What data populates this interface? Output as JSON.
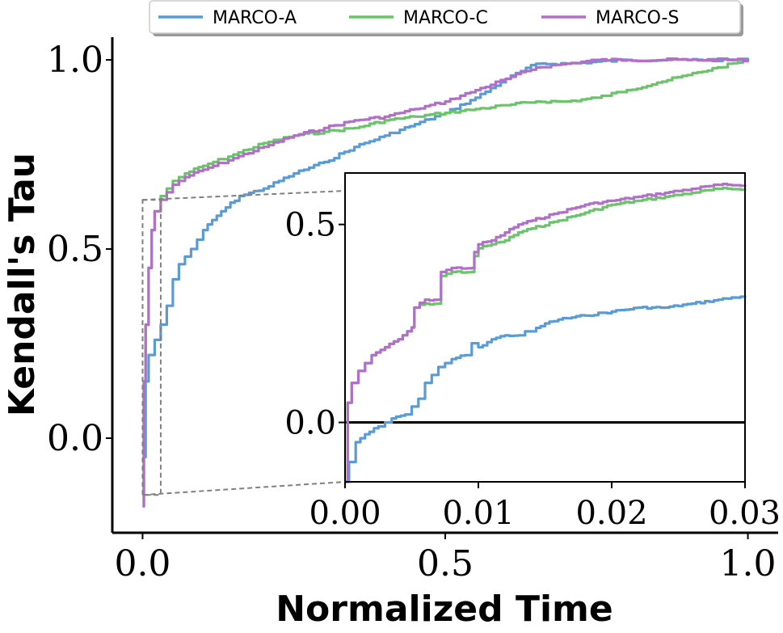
{
  "chart_data": [
    {
      "type": "line",
      "role": "main",
      "xlabel": "Normalized Time",
      "ylabel": "Kendall's Tau",
      "xlim": [
        -0.05,
        1.05
      ],
      "ylim": [
        -0.25,
        1.06
      ],
      "xticks": [
        0.0,
        0.5,
        1.0
      ],
      "xtick_labels": [
        "0.0",
        "0.5",
        "1.0"
      ],
      "yticks": [
        0.0,
        0.5,
        1.0
      ],
      "ytick_labels": [
        "0.0",
        "0.5",
        "1.0"
      ],
      "legend": [
        "MARCO-A",
        "MARCO-C",
        "MARCO-S"
      ],
      "legend_position": "top-center",
      "series": [
        {
          "name": "MARCO-A",
          "color": "#5b9bd5",
          "x": [
            0.0,
            0.002,
            0.005,
            0.01,
            0.02,
            0.03,
            0.04,
            0.05,
            0.06,
            0.08,
            0.1,
            0.13,
            0.16,
            0.2,
            0.25,
            0.3,
            0.35,
            0.4,
            0.45,
            0.5,
            0.55,
            0.6,
            0.65,
            0.7,
            0.8,
            0.9,
            1.0
          ],
          "y": [
            -0.18,
            -0.05,
            0.15,
            0.22,
            0.26,
            0.3,
            0.35,
            0.42,
            0.46,
            0.5,
            0.55,
            0.6,
            0.64,
            0.66,
            0.7,
            0.73,
            0.77,
            0.8,
            0.83,
            0.86,
            0.9,
            0.95,
            0.99,
            0.99,
            1.0,
            1.0,
            1.0
          ]
        },
        {
          "name": "MARCO-C",
          "color": "#6cc36c",
          "x": [
            0.0,
            0.002,
            0.005,
            0.01,
            0.015,
            0.02,
            0.03,
            0.04,
            0.05,
            0.07,
            0.1,
            0.15,
            0.2,
            0.25,
            0.3,
            0.35,
            0.4,
            0.45,
            0.5,
            0.55,
            0.6,
            0.65,
            0.7,
            0.75,
            0.8,
            0.85,
            0.9,
            0.95,
            1.0
          ],
          "y": [
            -0.18,
            0.15,
            0.3,
            0.45,
            0.55,
            0.6,
            0.64,
            0.66,
            0.68,
            0.7,
            0.72,
            0.75,
            0.78,
            0.8,
            0.81,
            0.82,
            0.84,
            0.85,
            0.86,
            0.87,
            0.88,
            0.89,
            0.89,
            0.9,
            0.92,
            0.94,
            0.96,
            0.98,
            1.0
          ]
        },
        {
          "name": "MARCO-S",
          "color": "#b070c8",
          "x": [
            0.0,
            0.002,
            0.005,
            0.01,
            0.015,
            0.02,
            0.03,
            0.04,
            0.05,
            0.07,
            0.1,
            0.15,
            0.2,
            0.25,
            0.3,
            0.35,
            0.4,
            0.45,
            0.5,
            0.55,
            0.6,
            0.65,
            0.7,
            0.75,
            0.8,
            0.9,
            1.0
          ],
          "y": [
            -0.18,
            0.15,
            0.3,
            0.45,
            0.55,
            0.6,
            0.63,
            0.65,
            0.67,
            0.69,
            0.71,
            0.74,
            0.77,
            0.8,
            0.82,
            0.84,
            0.85,
            0.87,
            0.89,
            0.92,
            0.95,
            0.98,
            0.99,
            1.0,
            1.0,
            1.0,
            1.0
          ]
        }
      ]
    },
    {
      "type": "line",
      "role": "inset",
      "xlim": [
        0.0,
        0.03
      ],
      "ylim": [
        -0.15,
        0.63
      ],
      "xticks": [
        0.0,
        0.01,
        0.02,
        0.03
      ],
      "xtick_labels": [
        "0.00",
        "0.01",
        "0.02",
        "0.03"
      ],
      "yticks": [
        0.0,
        0.5
      ],
      "ytick_labels": [
        "0.0",
        "0.5"
      ],
      "reference_line_y": 0.0,
      "series": [
        {
          "name": "MARCO-A",
          "color": "#5b9bd5",
          "x": [
            0.0,
            0.0003,
            0.0008,
            0.0015,
            0.0025,
            0.003,
            0.0035,
            0.0045,
            0.005,
            0.0055,
            0.006,
            0.0065,
            0.007,
            0.0075,
            0.008,
            0.009,
            0.0095,
            0.01,
            0.011,
            0.012,
            0.013,
            0.0135,
            0.014,
            0.015,
            0.016,
            0.018,
            0.02,
            0.022,
            0.024,
            0.026,
            0.028,
            0.03
          ],
          "y": [
            -0.15,
            -0.1,
            -0.05,
            -0.03,
            -0.01,
            0.0,
            0.01,
            0.02,
            0.04,
            0.06,
            0.1,
            0.12,
            0.14,
            0.15,
            0.16,
            0.17,
            0.2,
            0.19,
            0.21,
            0.22,
            0.22,
            0.23,
            0.23,
            0.25,
            0.26,
            0.27,
            0.28,
            0.29,
            0.29,
            0.3,
            0.31,
            0.32
          ]
        },
        {
          "name": "MARCO-C",
          "color": "#6cc36c",
          "x": [
            0.0,
            0.0002,
            0.0005,
            0.001,
            0.0015,
            0.002,
            0.003,
            0.004,
            0.005,
            0.0052,
            0.006,
            0.007,
            0.0072,
            0.008,
            0.0095,
            0.0097,
            0.01,
            0.011,
            0.012,
            0.013,
            0.014,
            0.016,
            0.018,
            0.02,
            0.022,
            0.024,
            0.026,
            0.028,
            0.03
          ],
          "y": [
            -0.15,
            0.05,
            0.1,
            0.13,
            0.15,
            0.17,
            0.19,
            0.21,
            0.24,
            0.29,
            0.3,
            0.3,
            0.37,
            0.38,
            0.38,
            0.42,
            0.44,
            0.45,
            0.46,
            0.48,
            0.49,
            0.51,
            0.53,
            0.55,
            0.56,
            0.57,
            0.58,
            0.59,
            0.59
          ]
        },
        {
          "name": "MARCO-S",
          "color": "#b070c8",
          "x": [
            0.0,
            0.0002,
            0.0005,
            0.001,
            0.0015,
            0.002,
            0.003,
            0.004,
            0.005,
            0.0052,
            0.006,
            0.007,
            0.0072,
            0.008,
            0.0095,
            0.0097,
            0.01,
            0.011,
            0.012,
            0.013,
            0.014,
            0.016,
            0.018,
            0.02,
            0.022,
            0.024,
            0.026,
            0.028,
            0.03
          ],
          "y": [
            -0.15,
            0.05,
            0.1,
            0.13,
            0.15,
            0.17,
            0.19,
            0.21,
            0.24,
            0.29,
            0.31,
            0.31,
            0.38,
            0.39,
            0.39,
            0.43,
            0.45,
            0.46,
            0.48,
            0.5,
            0.51,
            0.53,
            0.55,
            0.56,
            0.57,
            0.58,
            0.59,
            0.6,
            0.6
          ]
        }
      ]
    }
  ]
}
